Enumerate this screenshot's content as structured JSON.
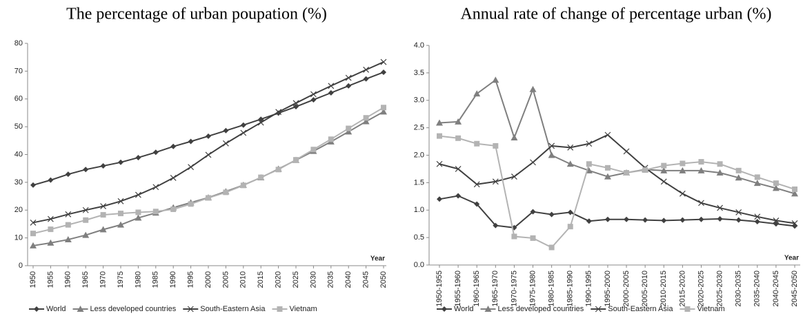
{
  "chart_data": [
    {
      "type": "line",
      "title": "The percentage of urban poupation (%)",
      "x_label": "Year",
      "categories": [
        "1950",
        "1955",
        "1960",
        "1965",
        "1970",
        "1975",
        "1980",
        "1985",
        "1990",
        "1995",
        "2000",
        "2005",
        "2010",
        "2015",
        "2020",
        "2025",
        "2030",
        "2035",
        "2040",
        "2045",
        "2050"
      ],
      "ylim": [
        0,
        80
      ],
      "yticks": [
        0,
        10,
        20,
        30,
        40,
        50,
        60,
        70,
        80
      ],
      "series": [
        {
          "name": "World",
          "color": "#404040",
          "marker": "diamond",
          "values": [
            29.0,
            30.8,
            32.9,
            34.6,
            35.9,
            37.2,
            38.9,
            40.8,
            42.9,
            44.7,
            46.6,
            48.6,
            50.6,
            52.7,
            54.9,
            57.2,
            59.7,
            62.2,
            64.7,
            67.2,
            69.6
          ]
        },
        {
          "name": "Less developed countries",
          "color": "#7f7f7f",
          "marker": "triangle",
          "values": [
            7.2,
            8.2,
            9.4,
            11.0,
            13.0,
            14.7,
            17.2,
            19.0,
            20.9,
            22.7,
            24.5,
            26.7,
            29.0,
            31.7,
            34.8,
            38.0,
            41.2,
            44.6,
            48.2,
            51.9,
            55.4
          ]
        },
        {
          "name": "South-Eastern Asia",
          "color": "#404040",
          "marker": "x",
          "values": [
            15.5,
            16.8,
            18.5,
            20.0,
            21.4,
            23.2,
            25.5,
            28.3,
            31.6,
            35.5,
            39.9,
            44.0,
            47.8,
            51.5,
            55.3,
            58.5,
            61.7,
            64.7,
            67.6,
            70.5,
            73.3
          ]
        },
        {
          "name": "Vietnam",
          "color": "#b3b3b3",
          "marker": "square",
          "values": [
            11.6,
            13.1,
            14.7,
            16.4,
            18.3,
            18.8,
            19.2,
            19.5,
            20.3,
            22.2,
            24.4,
            26.4,
            28.9,
            31.8,
            34.6,
            38.1,
            41.8,
            45.5,
            49.4,
            53.2,
            56.9
          ]
        }
      ]
    },
    {
      "type": "line",
      "title": "Annual rate of change of percentage urban (%)",
      "x_label": "Year",
      "categories": [
        "1950-1955",
        "1955-1960",
        "1960-1965",
        "1965-1970",
        "1970-1975",
        "1975-1980",
        "1980-1985",
        "1985-1990",
        "1990-1995",
        "1995-2000",
        "2000-2005",
        "2005-2010",
        "2010-2015",
        "2015-2020",
        "2020-2025",
        "2025-2030",
        "2030-2035",
        "2035-2040",
        "2040-2045",
        "2045-2050"
      ],
      "ylim": [
        0,
        4
      ],
      "yticks": [
        {
          "value": 0,
          "label": "0.0"
        },
        {
          "value": 0.5,
          "label": "0.5"
        },
        {
          "value": 1,
          "label": "1.0"
        },
        {
          "value": 1.5,
          "label": "1.5"
        },
        {
          "value": 2,
          "label": "2.0"
        },
        {
          "value": 2.5,
          "label": "2.5"
        },
        {
          "value": 3,
          "label": "3.0"
        },
        {
          "value": 3.5,
          "label": "3.5"
        },
        {
          "value": 4,
          "label": "4.0"
        }
      ],
      "series": [
        {
          "name": "World",
          "color": "#404040",
          "marker": "diamond",
          "values": [
            1.2,
            1.26,
            1.11,
            0.72,
            0.68,
            0.97,
            0.92,
            0.96,
            0.8,
            0.83,
            0.83,
            0.82,
            0.81,
            0.82,
            0.83,
            0.84,
            0.82,
            0.79,
            0.75,
            0.71
          ]
        },
        {
          "name": "Less developed countries",
          "color": "#7f7f7f",
          "marker": "triangle",
          "values": [
            2.59,
            2.61,
            3.12,
            3.37,
            2.32,
            3.2,
            2.0,
            1.84,
            1.72,
            1.61,
            1.68,
            1.74,
            1.72,
            1.72,
            1.72,
            1.68,
            1.59,
            1.49,
            1.4,
            1.3
          ]
        },
        {
          "name": "South-Eastern Asia",
          "color": "#404040",
          "marker": "x",
          "values": [
            1.84,
            1.75,
            1.47,
            1.52,
            1.61,
            1.87,
            2.17,
            2.14,
            2.21,
            2.37,
            2.07,
            1.77,
            1.52,
            1.3,
            1.13,
            1.04,
            0.96,
            0.88,
            0.81,
            0.76
          ]
        },
        {
          "name": "Vietnam",
          "color": "#b3b3b3",
          "marker": "square",
          "values": [
            2.35,
            2.31,
            2.21,
            2.17,
            0.52,
            0.49,
            0.32,
            0.7,
            1.84,
            1.77,
            1.68,
            1.73,
            1.81,
            1.85,
            1.88,
            1.84,
            1.72,
            1.6,
            1.49,
            1.38
          ]
        }
      ]
    }
  ]
}
